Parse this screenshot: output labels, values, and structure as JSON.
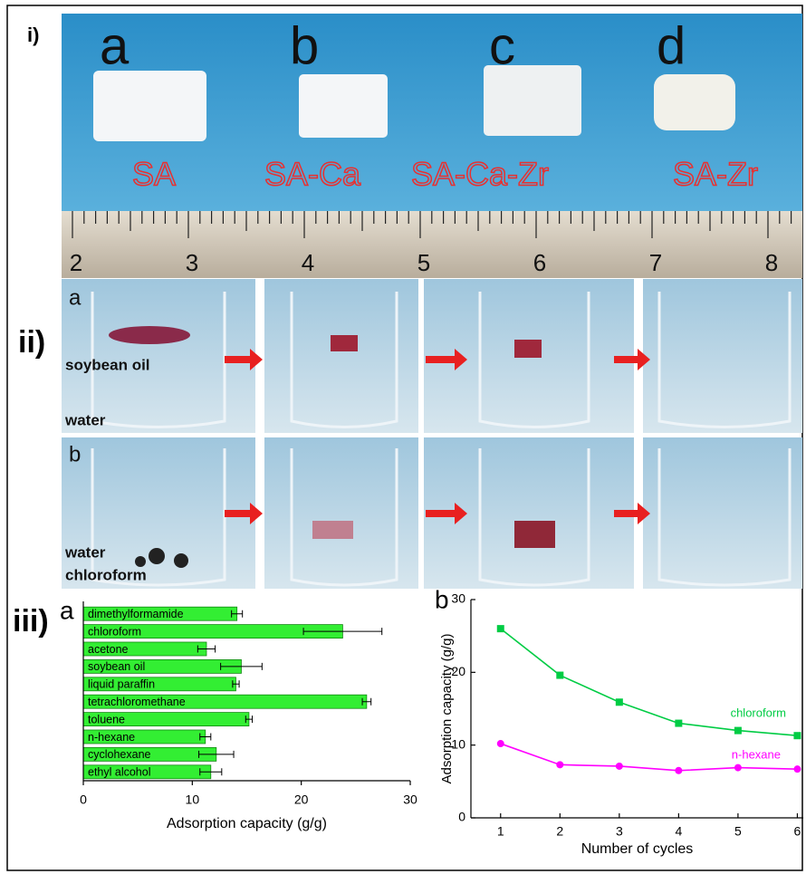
{
  "panel_labels": [
    "i)",
    "ii)",
    "iii)"
  ],
  "samples": {
    "letters": [
      "a",
      "b",
      "c",
      "d"
    ],
    "names": [
      "SA",
      "SA-Ca",
      "SA-Ca-Zr",
      "SA-Zr"
    ]
  },
  "ruler": [
    "2",
    "3",
    "4",
    "5",
    "6",
    "7",
    "8"
  ],
  "photos": {
    "row_a": {
      "letter": "a",
      "labels": [
        "soybean oil",
        "water"
      ]
    },
    "row_b": {
      "letter": "b",
      "labels": [
        "water",
        "chloroform"
      ]
    }
  },
  "chart_data": [
    {
      "type": "hbar",
      "panel": "a",
      "x_label": "Adsorption capacity (g/g)",
      "categories": [
        "dimethylformamide",
        "chloroform",
        "acetone",
        "soybean oil",
        "liquid paraffin",
        "tetrachloromethane",
        "toluene",
        "n-hexane",
        "cyclohexane",
        "ethyl alcohol"
      ],
      "values": [
        14.1,
        23.8,
        11.3,
        14.5,
        14.0,
        26.0,
        15.2,
        11.2,
        12.2,
        11.7
      ],
      "errors": [
        0.5,
        3.6,
        0.8,
        1.9,
        0.3,
        0.4,
        0.3,
        0.5,
        1.6,
        1.0
      ],
      "color": "#33ee33",
      "xlim": [
        0,
        30
      ],
      "xticks": [
        0,
        10,
        20,
        30
      ]
    },
    {
      "type": "line",
      "panel": "b",
      "x_label": "Number of cycles",
      "y_label": "Adsorption capacity (g/g)",
      "x": [
        1,
        2,
        3,
        4,
        5,
        6
      ],
      "series": [
        {
          "name": "chloroform",
          "color": "#00cc44",
          "values": [
            26.0,
            19.6,
            15.9,
            13.0,
            12.0,
            11.3
          ]
        },
        {
          "name": "n-hexane",
          "color": "#ff00ff",
          "values": [
            10.2,
            7.3,
            7.1,
            6.5,
            6.9,
            6.7
          ]
        }
      ],
      "xlim": [
        0.5,
        6.1
      ],
      "ylim": [
        0,
        30
      ],
      "xticks": [
        1,
        2,
        3,
        4,
        5,
        6
      ],
      "yticks": [
        0,
        10,
        20,
        30
      ]
    }
  ]
}
